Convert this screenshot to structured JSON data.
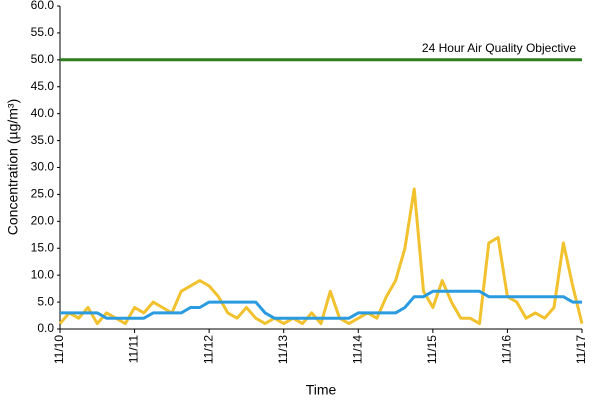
{
  "chart_data": {
    "type": "line",
    "y_label": "Concentration (µg/m³)",
    "x_label": "Time",
    "annotation": "24 Hour Air Quality Objective",
    "xlim": [
      0,
      7
    ],
    "xticks": [
      {
        "value": 0,
        "label": "11/10"
      },
      {
        "value": 1,
        "label": "11/11"
      },
      {
        "value": 2,
        "label": "11/12"
      },
      {
        "value": 3,
        "label": "11/13"
      },
      {
        "value": 4,
        "label": "11/14"
      },
      {
        "value": 5,
        "label": "11/15"
      },
      {
        "value": 6,
        "label": "11/16"
      },
      {
        "value": 7,
        "label": "11/17"
      }
    ],
    "ylim": [
      0,
      60
    ],
    "yticks": [
      {
        "value": 0,
        "label": "0.0"
      },
      {
        "value": 5,
        "label": "5.0"
      },
      {
        "value": 10,
        "label": "10.0"
      },
      {
        "value": 15,
        "label": "15.0"
      },
      {
        "value": 20,
        "label": "20.0"
      },
      {
        "value": 25,
        "label": "25.0"
      },
      {
        "value": 30,
        "label": "30.0"
      },
      {
        "value": 35,
        "label": "35.0"
      },
      {
        "value": 40,
        "label": "40.0"
      },
      {
        "value": 45,
        "label": "45.0"
      },
      {
        "value": 50,
        "label": "50.0"
      },
      {
        "value": 55,
        "label": "55.0"
      },
      {
        "value": 60,
        "label": "60.0"
      }
    ],
    "grid": false,
    "series": [
      {
        "color": "#2e7d1f",
        "x": [
          0,
          7
        ],
        "values": [
          50,
          50
        ]
      },
      {
        "color": "#f2c12e",
        "x": [
          0,
          0.125,
          0.25,
          0.375,
          0.5,
          0.625,
          0.75,
          0.875,
          1,
          1.125,
          1.25,
          1.375,
          1.5,
          1.625,
          1.75,
          1.875,
          2,
          2.125,
          2.25,
          2.375,
          2.5,
          2.625,
          2.75,
          2.875,
          3,
          3.125,
          3.25,
          3.375,
          3.5,
          3.625,
          3.75,
          3.875,
          4,
          4.125,
          4.25,
          4.375,
          4.5,
          4.625,
          4.75,
          4.875,
          5,
          5.125,
          5.25,
          5.375,
          5.5,
          5.625,
          5.75,
          5.875,
          6,
          6.125,
          6.25,
          6.375,
          6.5,
          6.625,
          6.75,
          6.875,
          7
        ],
        "values": [
          1,
          3,
          2,
          4,
          1,
          3,
          2,
          1,
          4,
          3,
          5,
          4,
          3,
          7,
          8,
          9,
          8,
          6,
          3,
          2,
          4,
          2,
          1,
          2,
          1,
          2,
          1,
          3,
          1,
          7,
          2,
          1,
          2,
          3,
          2,
          6,
          9,
          15,
          26,
          7,
          4,
          9,
          5,
          2,
          2,
          1,
          16,
          17,
          6,
          5,
          2,
          3,
          2,
          4,
          16,
          8,
          1
        ]
      },
      {
        "color": "#2b9be0",
        "x": [
          0,
          0.125,
          0.25,
          0.375,
          0.5,
          0.625,
          0.75,
          0.875,
          1,
          1.125,
          1.25,
          1.375,
          1.5,
          1.625,
          1.75,
          1.875,
          2,
          2.125,
          2.25,
          2.375,
          2.5,
          2.625,
          2.75,
          2.875,
          3,
          3.125,
          3.25,
          3.375,
          3.5,
          3.625,
          3.75,
          3.875,
          4,
          4.125,
          4.25,
          4.375,
          4.5,
          4.625,
          4.75,
          4.875,
          5,
          5.125,
          5.25,
          5.375,
          5.5,
          5.625,
          5.75,
          5.875,
          6,
          6.125,
          6.25,
          6.375,
          6.5,
          6.625,
          6.75,
          6.875,
          7
        ],
        "values": [
          3,
          3,
          3,
          3,
          3,
          2,
          2,
          2,
          2,
          2,
          3,
          3,
          3,
          3,
          4,
          4,
          5,
          5,
          5,
          5,
          5,
          5,
          3,
          2,
          2,
          2,
          2,
          2,
          2,
          2,
          2,
          2,
          3,
          3,
          3,
          3,
          3,
          4,
          6,
          6,
          7,
          7,
          7,
          7,
          7,
          7,
          6,
          6,
          6,
          6,
          6,
          6,
          6,
          6,
          6,
          5,
          5
        ]
      }
    ]
  }
}
